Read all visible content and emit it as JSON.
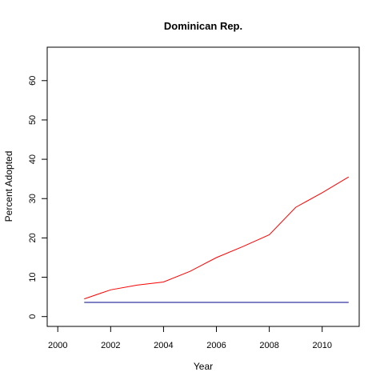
{
  "chart_data": {
    "type": "line",
    "title": "Dominican Rep.",
    "xlabel": "Year",
    "ylabel": "Percent Adopted",
    "xlim": [
      1999.6,
      2011.4
    ],
    "ylim": [
      -2.5,
      68.5
    ],
    "x_ticks": [
      2000,
      2002,
      2004,
      2006,
      2008,
      2010
    ],
    "y_ticks": [
      0,
      10,
      20,
      30,
      40,
      50,
      60
    ],
    "series": [
      {
        "color": "#ff0000",
        "x": [
          2001,
          2002,
          2003,
          2004,
          2005,
          2006,
          2007,
          2008,
          2009,
          2010,
          2011
        ],
        "y": [
          4.5,
          6.8,
          8.0,
          8.8,
          11.5,
          15.0,
          17.8,
          20.8,
          27.8,
          31.5,
          35.5
        ]
      },
      {
        "color": "#00008b",
        "x": [
          2001,
          2002,
          2003,
          2004,
          2005,
          2006,
          2007,
          2008,
          2009,
          2010,
          2011
        ],
        "y": [
          3.6,
          3.6,
          3.6,
          3.6,
          3.6,
          3.6,
          3.6,
          3.6,
          3.6,
          3.6,
          3.6
        ]
      }
    ],
    "grid": false,
    "legend": "none"
  }
}
